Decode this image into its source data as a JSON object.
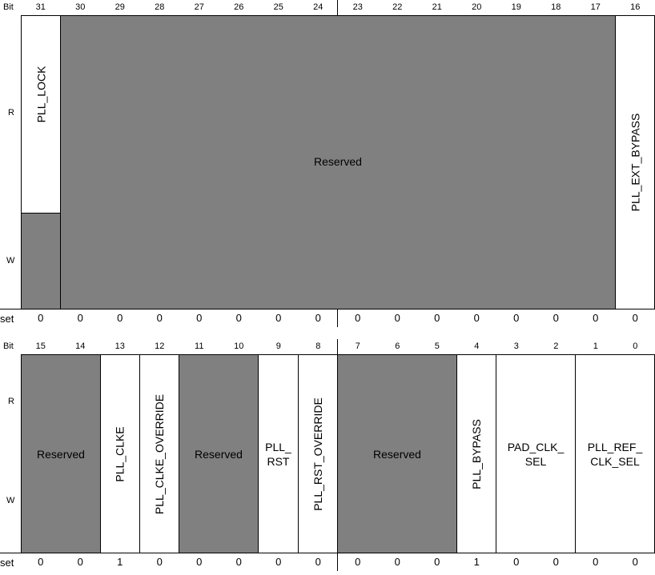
{
  "top": {
    "bit_label": "Bit",
    "bits": [
      "31",
      "30",
      "29",
      "28",
      "27",
      "26",
      "25",
      "24",
      "23",
      "22",
      "21",
      "20",
      "19",
      "18",
      "17",
      "16"
    ],
    "r_label": "R",
    "w_label": "W",
    "fields": {
      "pll_lock": "PLL_LOCK",
      "reserved": "Reserved",
      "pll_ext_bypass": "PLL_EXT_BYPASS"
    },
    "set_label": "set",
    "set": [
      "0",
      "0",
      "0",
      "0",
      "0",
      "0",
      "0",
      "0",
      "0",
      "0",
      "0",
      "0",
      "0",
      "0",
      "0",
      "0"
    ]
  },
  "bottom": {
    "bit_label": "Bit",
    "bits": [
      "15",
      "14",
      "13",
      "12",
      "11",
      "10",
      "9",
      "8",
      "7",
      "6",
      "5",
      "4",
      "3",
      "2",
      "1",
      "0"
    ],
    "r_label": "R",
    "w_label": "W",
    "fields": {
      "reserved_15_14": "Reserved",
      "pll_clke": "PLL_CLKE",
      "pll_clke_override": "PLL_CLKE_OVERRIDE",
      "reserved_11_10": "Reserved",
      "pll_rst": "PLL_\nRST",
      "pll_rst_override": "PLL_RST_OVERRIDE",
      "reserved_7_5": "Reserved",
      "pll_bypass": "PLL_BYPASS",
      "pad_clk_sel": "PAD_CLK_\nSEL",
      "pll_ref_clk_sel": "PLL_REF_\nCLK_SEL"
    },
    "set_label": "set",
    "set": [
      "0",
      "0",
      "1",
      "0",
      "0",
      "0",
      "0",
      "0",
      "0",
      "0",
      "0",
      "1",
      "0",
      "0",
      "0",
      "0"
    ]
  },
  "colors": {
    "reserved_fill": "#808080",
    "field_fill": "#ffffff",
    "border": "#000000"
  }
}
